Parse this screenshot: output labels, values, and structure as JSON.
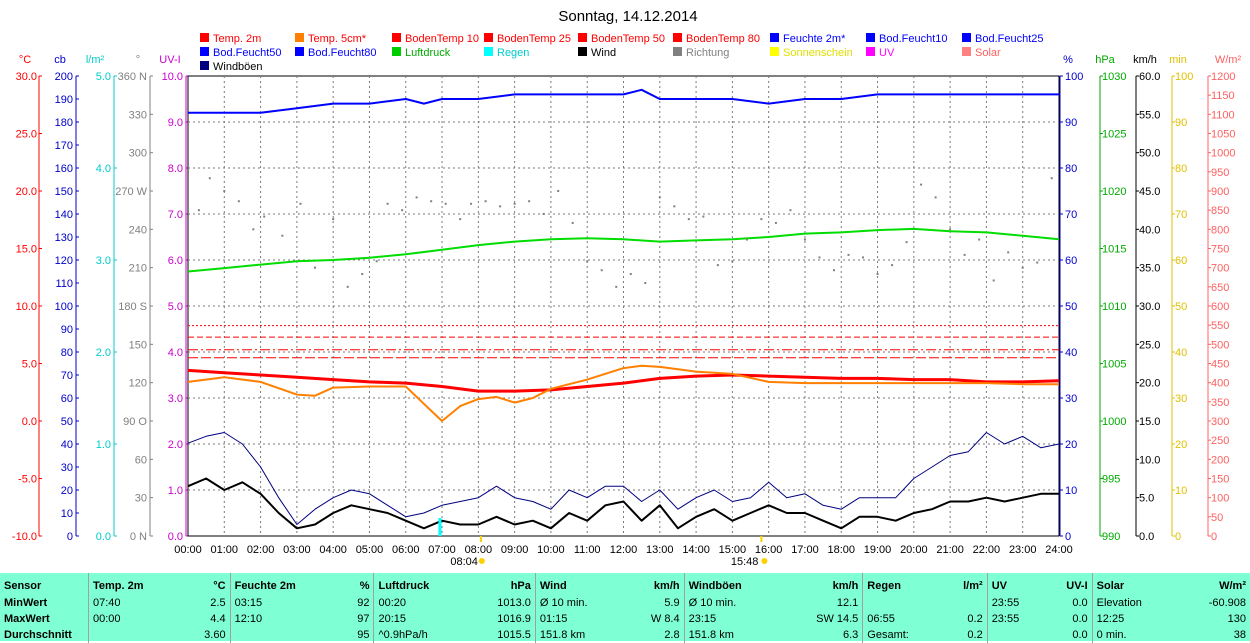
{
  "title": "Sonntag, 14.12.2014",
  "legend": [
    {
      "label": "Temp. 2m",
      "color": "#ff0000",
      "text_color": "#ff0000"
    },
    {
      "label": "Temp. 5cm*",
      "color": "#ff8000",
      "text_color": "#ff0000"
    },
    {
      "label": "BodenTemp 10",
      "color": "#ff0000",
      "text_color": "#ff0000"
    },
    {
      "label": "BodenTemp 25",
      "color": "#ff0000",
      "text_color": "#ff0000"
    },
    {
      "label": "BodenTemp 50",
      "color": "#ff0000",
      "text_color": "#ff0000"
    },
    {
      "label": "BodenTemp 80",
      "color": "#ff0000",
      "text_color": "#ff0000"
    },
    {
      "label": "Feuchte 2m*",
      "color": "#0000ff",
      "text_color": "#0000ff"
    },
    {
      "label": "Bod.Feucht10",
      "color": "#0000ff",
      "text_color": "#0000ff"
    },
    {
      "label": "Bod.Feucht25",
      "color": "#0000ff",
      "text_color": "#0000ff"
    },
    {
      "label": "Bod.Feucht50",
      "color": "#0000ff",
      "text_color": "#0000ff"
    },
    {
      "label": "Bod.Feucht80",
      "color": "#0000ff",
      "text_color": "#0000ff"
    },
    {
      "label": "Luftdruck",
      "color": "#00cc00",
      "text_color": "#00aa00"
    },
    {
      "label": "Regen",
      "color": "#00ffff",
      "text_color": "#00cccc"
    },
    {
      "label": "Wind",
      "color": "#000000",
      "text_color": "#000000"
    },
    {
      "label": "Richtung",
      "color": "#808080",
      "text_color": "#808080"
    },
    {
      "label": "Sonnenschein",
      "color": "#ffff00",
      "text_color": "#e0e000"
    },
    {
      "label": "UV",
      "color": "#ff00ff",
      "text_color": "#ff00ff"
    },
    {
      "label": "Solar",
      "color": "#ff8080",
      "text_color": "#ff6060"
    },
    {
      "label": "Windböen",
      "color": "#000080",
      "text_color": "#000000"
    }
  ],
  "axes": {
    "temp": {
      "unit": "°C",
      "color": "#ff0000",
      "ticks": [
        "30.0",
        "25.0",
        "20.0",
        "15.0",
        "10.0",
        "5.0",
        "0.0",
        "-5.0",
        "-10.0"
      ]
    },
    "cb": {
      "unit": "cb",
      "color": "#0000cc",
      "ticks": [
        "200",
        "190",
        "180",
        "170",
        "160",
        "150",
        "140",
        "130",
        "120",
        "110",
        "100",
        "90",
        "80",
        "70",
        "60",
        "50",
        "40",
        "30",
        "20",
        "10",
        "0"
      ]
    },
    "rain": {
      "unit": "l/m²",
      "color": "#00cccc",
      "ticks": [
        "5.0",
        "4.0",
        "3.0",
        "2.0",
        "1.0",
        "0.0"
      ]
    },
    "dir": {
      "unit": "°",
      "color": "#808080",
      "ticks": [
        "360 N",
        "330",
        "300",
        "270 W",
        "240",
        "210",
        "180 S",
        "150",
        "120",
        "90 O",
        "60",
        "30",
        "0 N"
      ]
    },
    "uv": {
      "unit": "UV-I",
      "color": "#cc00cc",
      "ticks": [
        "10.0",
        "9.0",
        "8.0",
        "7.0",
        "6.0",
        "5.0",
        "4.0",
        "3.0",
        "2.0",
        "1.0",
        "0.0"
      ]
    },
    "hum": {
      "unit": "%",
      "color": "#0000cc",
      "ticks": [
        "100",
        "90",
        "80",
        "70",
        "60",
        "50",
        "40",
        "30",
        "20",
        "10",
        "0"
      ]
    },
    "hpa": {
      "unit": "hPa",
      "color": "#00aa00",
      "ticks": [
        "1030",
        "1025",
        "1020",
        "1015",
        "1010",
        "1005",
        "1000",
        "995",
        "990"
      ]
    },
    "kmh": {
      "unit": "km/h",
      "color": "#000000",
      "ticks": [
        "60.0",
        "55.0",
        "50.0",
        "45.0",
        "40.0",
        "35.0",
        "30.0",
        "25.0",
        "20.0",
        "15.0",
        "10.0",
        "5.0",
        "0.0"
      ]
    },
    "min": {
      "unit": "min",
      "color": "#e0c000",
      "ticks": [
        "100",
        "90",
        "80",
        "70",
        "60",
        "50",
        "40",
        "30",
        "20",
        "10",
        "0"
      ]
    },
    "wm2": {
      "unit": "W/m²",
      "color": "#ff6060",
      "ticks": [
        "1200",
        "1150",
        "1100",
        "1050",
        "1000",
        "950",
        "900",
        "850",
        "800",
        "750",
        "700",
        "650",
        "600",
        "550",
        "500",
        "450",
        "400",
        "350",
        "300",
        "250",
        "200",
        "150",
        "100",
        "50",
        "0"
      ]
    }
  },
  "x_ticks": [
    "00:00",
    "01:00",
    "02:00",
    "03:00",
    "04:00",
    "05:00",
    "06:00",
    "07:00",
    "08:00",
    "09:00",
    "10:00",
    "11:00",
    "12:00",
    "13:00",
    "14:00",
    "15:00",
    "16:00",
    "17:00",
    "18:00",
    "19:00",
    "20:00",
    "21:00",
    "22:00",
    "23:00",
    "24:00"
  ],
  "sunrise_label": "08:04",
  "sunset_label": "15:48",
  "chart_data": {
    "type": "line",
    "title": "Sonntag, 14.12.2014",
    "x_unit": "hour",
    "xlim": [
      0,
      24
    ],
    "series": [
      {
        "name": "Feuchte 2m*",
        "axis": "hum",
        "color": "#0000ff",
        "x": [
          0,
          1,
          2,
          3,
          4,
          5,
          6,
          6.5,
          7,
          8,
          9,
          10,
          11,
          12,
          12.5,
          13,
          14,
          15,
          16,
          17,
          18,
          19,
          20,
          21,
          22,
          23,
          24
        ],
        "y": [
          92,
          92,
          92,
          93,
          94,
          94,
          95,
          94,
          95,
          95,
          96,
          96,
          96,
          96,
          97,
          95,
          95,
          95,
          94,
          95,
          95,
          96,
          96,
          96,
          96,
          96,
          96
        ]
      },
      {
        "name": "Luftdruck",
        "axis": "hpa",
        "color": "#00dd00",
        "x": [
          0,
          1,
          2,
          3,
          4,
          5,
          6,
          7,
          8,
          9,
          10,
          11,
          12,
          13,
          14,
          15,
          16,
          17,
          18,
          19,
          20,
          21,
          22,
          23,
          24
        ],
        "y": [
          1013.0,
          1013.3,
          1013.6,
          1013.9,
          1014.0,
          1014.2,
          1014.5,
          1014.9,
          1015.3,
          1015.6,
          1015.8,
          1015.9,
          1015.8,
          1015.6,
          1015.7,
          1015.8,
          1016.0,
          1016.3,
          1016.4,
          1016.6,
          1016.7,
          1016.5,
          1016.4,
          1016.1,
          1015.8
        ]
      },
      {
        "name": "Temp. 2m",
        "axis": "temp",
        "color": "#ff0000",
        "x": [
          0,
          1,
          2,
          3,
          4,
          5,
          6,
          7,
          8,
          9,
          10,
          11,
          12,
          13,
          14,
          15,
          16,
          17,
          18,
          19,
          20,
          21,
          22,
          23,
          24
        ],
        "y": [
          4.4,
          4.2,
          4.0,
          3.8,
          3.6,
          3.4,
          3.3,
          3.0,
          2.6,
          2.6,
          2.7,
          3.0,
          3.3,
          3.7,
          3.9,
          4.0,
          3.9,
          3.8,
          3.7,
          3.7,
          3.6,
          3.6,
          3.4,
          3.4,
          3.5
        ]
      },
      {
        "name": "Temp. 5cm*",
        "axis": "temp",
        "color": "#ff8000",
        "x": [
          0,
          1,
          2,
          3,
          3.5,
          4,
          5,
          6,
          6.5,
          7,
          7.5,
          8,
          8.5,
          9,
          9.5,
          10,
          11,
          12,
          12.5,
          13,
          14,
          15,
          16,
          17,
          18,
          19,
          20,
          21,
          22,
          23,
          24
        ],
        "y": [
          3.4,
          3.8,
          3.4,
          2.3,
          2.2,
          2.9,
          3.0,
          3.0,
          1.5,
          0.0,
          1.3,
          1.9,
          2.1,
          1.6,
          2.0,
          2.8,
          3.6,
          4.6,
          4.8,
          4.7,
          4.3,
          4.1,
          3.4,
          3.3,
          3.3,
          3.3,
          3.3,
          3.3,
          3.3,
          3.2,
          3.2
        ]
      },
      {
        "name": "BodenTemp 10",
        "axis": "temp",
        "color": "#ff0000",
        "x": [
          0,
          24
        ],
        "y": [
          5.5,
          5.5
        ]
      },
      {
        "name": "BodenTemp 25",
        "axis": "temp",
        "color": "#ff0000",
        "x": [
          0,
          24
        ],
        "y": [
          6.2,
          6.2
        ]
      },
      {
        "name": "BodenTemp 50",
        "axis": "temp",
        "color": "#ff0000",
        "x": [
          0,
          24
        ],
        "y": [
          7.3,
          7.3
        ]
      },
      {
        "name": "BodenTemp 80",
        "axis": "temp",
        "color": "#ff0000",
        "x": [
          0,
          24
        ],
        "y": [
          8.3,
          8.3
        ]
      },
      {
        "name": "Wind",
        "axis": "kmh",
        "color": "#000000",
        "x": [
          0,
          0.5,
          1,
          1.5,
          2,
          2.5,
          3,
          3.5,
          4,
          4.5,
          5,
          5.5,
          6,
          6.5,
          7,
          7.5,
          8,
          8.5,
          9,
          9.5,
          10,
          10.5,
          11,
          11.5,
          12,
          12.5,
          13,
          13.5,
          14,
          14.5,
          15,
          15.5,
          16,
          16.5,
          17,
          17.5,
          18,
          18.5,
          19,
          19.5,
          20,
          20.5,
          21,
          21.5,
          22,
          22.5,
          23,
          23.5,
          24
        ],
        "y": [
          6.5,
          7.5,
          6.0,
          7.0,
          5.5,
          3.0,
          1.0,
          1.5,
          3.0,
          4.0,
          3.5,
          3.0,
          2.0,
          1.0,
          2.0,
          1.5,
          1.5,
          2.5,
          1.5,
          2.0,
          1.0,
          3.0,
          2.0,
          4.0,
          4.5,
          2.0,
          4.0,
          1.0,
          2.5,
          3.5,
          2.0,
          3.0,
          4.0,
          3.0,
          3.0,
          2.0,
          1.0,
          2.5,
          2.5,
          2.0,
          3.0,
          3.5,
          4.5,
          4.5,
          5.0,
          4.5,
          5.0,
          5.5,
          5.5
        ]
      },
      {
        "name": "Windböen",
        "axis": "kmh",
        "color": "#000080",
        "x": [
          0,
          0.5,
          1,
          1.5,
          2,
          2.5,
          3,
          3.5,
          4,
          4.5,
          5,
          5.5,
          6,
          6.5,
          7,
          7.5,
          8,
          8.5,
          9,
          9.5,
          10,
          10.5,
          11,
          11.5,
          12,
          12.5,
          13,
          13.5,
          14,
          14.5,
          15,
          15.5,
          16,
          16.5,
          17,
          17.5,
          18,
          18.5,
          19,
          19.5,
          20,
          20.5,
          21,
          21.5,
          22,
          22.5,
          23,
          23.5,
          24
        ],
        "y": [
          12.1,
          13.0,
          13.5,
          12.0,
          9.0,
          5.0,
          1.5,
          3.5,
          5.0,
          6.0,
          5.5,
          4.0,
          2.5,
          3.0,
          4.0,
          4.5,
          5.0,
          6.5,
          5.0,
          4.5,
          3.5,
          6.0,
          5.0,
          6.5,
          6.5,
          4.5,
          6.0,
          3.5,
          5.0,
          6.0,
          4.5,
          5.0,
          7.0,
          5.0,
          5.5,
          4.0,
          3.5,
          5.0,
          5.0,
          5.0,
          7.5,
          9.0,
          10.5,
          11.0,
          13.5,
          12.0,
          13.0,
          11.5,
          12.0
        ]
      },
      {
        "name": "Richtung",
        "axis": "dir",
        "color": "#808080",
        "type": "scatter",
        "x": [
          0.3,
          0.6,
          1.0,
          1.4,
          1.8,
          2.1,
          2.6,
          3.1,
          3.5,
          4.0,
          4.4,
          4.8,
          5.2,
          5.5,
          5.9,
          6.3,
          6.7,
          7.1,
          7.5,
          7.8,
          8.2,
          8.6,
          9.0,
          9.4,
          9.8,
          10.2,
          10.6,
          11.0,
          11.4,
          11.8,
          12.2,
          12.6,
          13.0,
          13.4,
          13.8,
          14.2,
          14.6,
          15.0,
          15.4,
          15.8,
          16.2,
          16.6,
          17.0,
          17.4,
          17.8,
          18.2,
          18.6,
          19.0,
          19.4,
          19.8,
          20.2,
          20.6,
          21.0,
          21.4,
          21.8,
          22.2,
          22.6,
          23.0,
          23.4,
          23.8
        ],
        "y": [
          255,
          280,
          270,
          262,
          240,
          250,
          235,
          260,
          210,
          248,
          195,
          205,
          215,
          260,
          255,
          265,
          262,
          260,
          248,
          260,
          262,
          258,
          260,
          262,
          252,
          270,
          245,
          215,
          208,
          195,
          205,
          198,
          265,
          258,
          248,
          250,
          212,
          215,
          232,
          248,
          245,
          255,
          232,
          218,
          208,
          220,
          218,
          205,
          212,
          230,
          275,
          265,
          240,
          220,
          232,
          200,
          222,
          210,
          214,
          280
        ]
      }
    ]
  },
  "stats": {
    "headers": [
      {
        "name": "Sensor",
        "unit": ""
      },
      {
        "name": "Temp. 2m",
        "unit": "°C"
      },
      {
        "name": "Feuchte 2m",
        "unit": "%"
      },
      {
        "name": "Luftdruck",
        "unit": "hPa"
      },
      {
        "name": "Wind",
        "unit": "km/h"
      },
      {
        "name": "Windböen",
        "unit": "km/h"
      },
      {
        "name": "Regen",
        "unit": "l/m²"
      },
      {
        "name": "UV",
        "unit": "UV-I"
      },
      {
        "name": "Solar",
        "unit": "W/m²"
      }
    ],
    "rows": [
      {
        "label": "MinWert",
        "cells": [
          [
            "07:40",
            "2.5"
          ],
          [
            "03:15",
            "92"
          ],
          [
            "00:20",
            "1013.0"
          ],
          [
            "Ø 10 min.",
            "5.9"
          ],
          [
            "Ø 10 min.",
            "12.1"
          ],
          [
            "",
            ""
          ],
          [
            "23:55",
            "0.0"
          ],
          [
            "Elevation",
            "-60.908"
          ]
        ]
      },
      {
        "label": "MaxWert",
        "cells": [
          [
            "00:00",
            "4.4"
          ],
          [
            "12:10",
            "97"
          ],
          [
            "20:15",
            "1016.9"
          ],
          [
            "01:15",
            "W 8.4"
          ],
          [
            "23:15",
            "SW 14.5"
          ],
          [
            "06:55",
            "0.2"
          ],
          [
            "23:55",
            "0.0"
          ],
          [
            "12:25",
            "130"
          ]
        ]
      },
      {
        "label": "Durchschnitt",
        "cells": [
          [
            "",
            "3.60"
          ],
          [
            "",
            "95"
          ],
          [
            "^0.9hPa/h",
            "1015.5"
          ],
          [
            "151.8 km",
            "2.8"
          ],
          [
            "151.8 km",
            "6.3"
          ],
          [
            "Gesamt:",
            "0.2"
          ],
          [
            "",
            "0.0"
          ],
          [
            "0 min.",
            "38"
          ]
        ]
      }
    ]
  }
}
